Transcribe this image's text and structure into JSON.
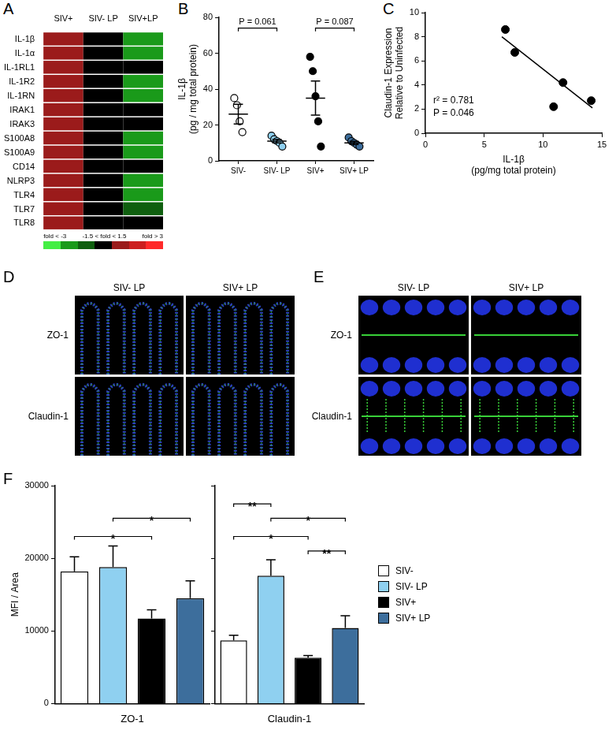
{
  "chart_data": [
    {
      "label": "A",
      "type": "heatmap",
      "columns": [
        "SIV+",
        "SIV- LP",
        "SIV+LP"
      ],
      "rows": [
        "IL-1β",
        "IL-1α",
        "IL-1RL1",
        "IL-1R2",
        "IL-1RN",
        "IRAK1",
        "IRAK3",
        "S100A8",
        "S100A9",
        "CD14",
        "NLRP3",
        "TLR4",
        "TLR7",
        "TLR8"
      ],
      "values": [
        [
          1.8,
          1,
          -2.5
        ],
        [
          1.8,
          1,
          -2.5
        ],
        [
          1.8,
          1,
          1
        ],
        [
          1.8,
          1,
          -2.5
        ],
        [
          1.8,
          1,
          -2.5
        ],
        [
          1.8,
          1,
          1
        ],
        [
          1.8,
          1,
          1
        ],
        [
          1.8,
          1,
          -2.5
        ],
        [
          1.8,
          1,
          -2.5
        ],
        [
          1.8,
          1,
          1
        ],
        [
          1.8,
          1,
          -2.5
        ],
        [
          1.8,
          1,
          -2.5
        ],
        [
          1.8,
          1,
          -1.8
        ],
        [
          1.8,
          1,
          1
        ]
      ],
      "color_scale": {
        "breaks": [
          -3,
          -2,
          -1.5,
          1.5,
          2,
          3
        ],
        "colors": [
          "#44ee44",
          "#1a9a1a",
          "#0f5f0f",
          "#000000",
          "#9b1b1b",
          "#cc1f1f",
          "#ff2a2a"
        ],
        "labels": [
          "fold < -3",
          "-1.5 < fold < 1.5",
          "fold > 3"
        ]
      }
    },
    {
      "label": "B",
      "type": "scatter",
      "categories": [
        "SIV-",
        "SIV- LP",
        "SIV+",
        "SIV+ LP"
      ],
      "colors": [
        "#ffffff",
        "#8fd0f0",
        "#000000",
        "#3d6e9c"
      ],
      "values": [
        [
          35,
          31,
          22,
          16
        ],
        [
          14,
          12,
          11,
          10,
          8
        ],
        [
          58,
          50,
          36,
          22,
          8
        ],
        [
          13,
          11,
          10,
          9,
          8
        ]
      ],
      "mean": [
        26,
        11,
        35,
        10
      ],
      "sem": [
        5.5,
        1,
        9.5,
        0.9
      ],
      "y_label": [
        "IL-1β",
        "(pg / mg total protein)"
      ],
      "ylim": [
        0,
        80
      ],
      "yticks": [
        0,
        20,
        40,
        60,
        80
      ],
      "grid": false,
      "comparisons": [
        {
          "from": "SIV-",
          "to": "SIV- LP",
          "y": 74,
          "label": "P = 0.061"
        },
        {
          "from": "SIV+",
          "to": "SIV+ LP",
          "y": 74,
          "label": "P = 0.087"
        }
      ]
    },
    {
      "label": "C",
      "type": "scatter",
      "x": [
        6.8,
        7.6,
        10.9,
        11.7,
        14.1
      ],
      "values": [
        8.6,
        6.7,
        2.2,
        4.2,
        2.7
      ],
      "color": "#000000",
      "fit_line": {
        "x": [
          6.5,
          14.2
        ],
        "y": [
          8.0,
          2.1
        ]
      },
      "annotations": [
        "r² = 0.781",
        "P = 0.046"
      ],
      "x_label": [
        "IL-1β",
        "(pg/mg total protein)"
      ],
      "y_label": [
        "Claudin-1 Expression",
        "Relative to Uninfected"
      ],
      "xlim": [
        0,
        15
      ],
      "xticks": [
        0,
        5,
        10,
        15
      ],
      "ylim": [
        0,
        10
      ],
      "yticks": [
        0,
        2,
        4,
        6,
        8,
        10
      ],
      "grid": false
    },
    {
      "label": "F",
      "type": "bar",
      "categories": [
        "SIV-",
        "SIV- LP",
        "SIV+",
        "SIV+ LP"
      ],
      "colors": [
        "#ffffff",
        "#8fd0f0",
        "#000000",
        "#3d6e9c"
      ],
      "values": [
        18200,
        18800,
        11700,
        14500
      ],
      "errors": [
        2000,
        2900,
        1200,
        2400
      ],
      "x_label": "ZO-1",
      "y_label": "MFI / Area",
      "ylim": [
        0,
        30000
      ],
      "yticks": [
        0,
        10000,
        20000,
        30000
      ],
      "grid": false,
      "tick_labels": "y",
      "significance": [
        {
          "from": "SIV-",
          "to": "SIV+",
          "y": 23000,
          "label": "*"
        },
        {
          "from": "SIV- LP",
          "to": "SIV+ LP",
          "y": 25500,
          "label": "*"
        }
      ]
    },
    {
      "type": "bar",
      "categories": [
        "SIV-",
        "SIV- LP",
        "SIV+",
        "SIV+ LP"
      ],
      "colors": [
        "#ffffff",
        "#8fd0f0",
        "#000000",
        "#3d6e9c"
      ],
      "values": [
        8700,
        17600,
        6300,
        10400
      ],
      "errors": [
        700,
        2200,
        300,
        1700
      ],
      "x_label": "Claudin-1",
      "ylim": [
        0,
        30000
      ],
      "yticks": [
        0,
        10000,
        20000,
        30000
      ],
      "grid": false,
      "tick_labels": false,
      "legend": "right",
      "significance": [
        {
          "from": "SIV-",
          "to": "SIV- LP",
          "y": 27500,
          "label": "**"
        },
        {
          "from": "SIV- LP",
          "to": "SIV+ LP",
          "y": 25500,
          "label": "*"
        },
        {
          "from": "SIV-",
          "to": "SIV+",
          "y": 23000,
          "label": "*"
        },
        {
          "from": "SIV+",
          "to": "SIV+ LP",
          "y": 21000,
          "label": "**"
        }
      ]
    }
  ],
  "image_panels": [
    {
      "label": "D",
      "columns": [
        "SIV- LP",
        "SIV+ LP"
      ],
      "rows": [
        "ZO-1",
        "Claudin-1"
      ]
    },
    {
      "label": "E",
      "columns": [
        "SIV- LP",
        "SIV+ LP"
      ],
      "rows": [
        "ZO-1",
        "Claudin-1"
      ]
    }
  ]
}
